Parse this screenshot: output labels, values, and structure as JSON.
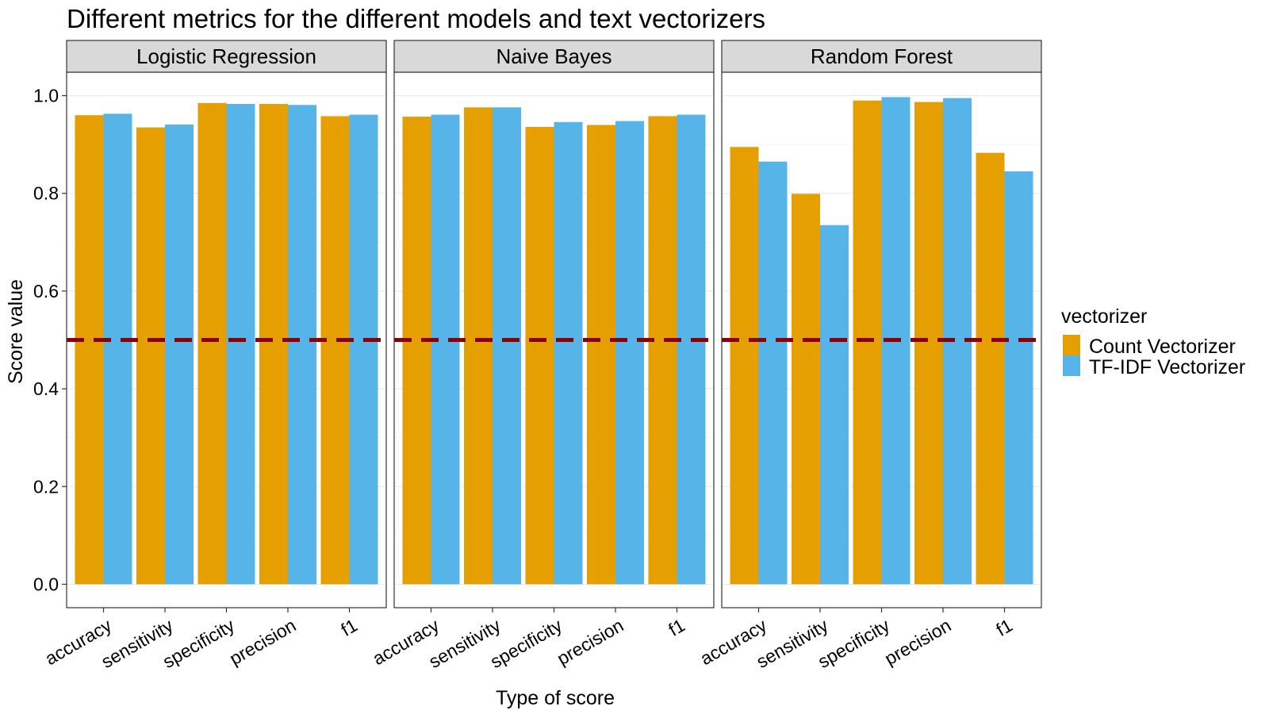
{
  "chart_data": {
    "type": "bar",
    "title": "Different metrics for the different models and text vectorizers",
    "xlabel": "Type of score",
    "ylabel": "Score value",
    "ylim": [
      -0.048,
      1.048
    ],
    "yticks": [
      "0.0",
      "0.2",
      "0.4",
      "0.6",
      "0.8",
      "1.0"
    ],
    "reference_line": {
      "y": 0.5,
      "style": "dashed",
      "color": "#8B0000"
    },
    "categories": [
      "accuracy",
      "sensitivity",
      "specificity",
      "precision",
      "f1"
    ],
    "legend": {
      "title": "vectorizer",
      "placement": "right"
    },
    "series_meta": [
      {
        "name": "Count Vectorizer",
        "color": "#E69F00"
      },
      {
        "name": "TF-IDF Vectorizer",
        "color": "#56B4E9"
      }
    ],
    "facets": [
      {
        "title": "Logistic Regression",
        "series": [
          {
            "name": "Count Vectorizer",
            "values": [
              0.96,
              0.935,
              0.985,
              0.983,
              0.958
            ]
          },
          {
            "name": "TF-IDF Vectorizer",
            "values": [
              0.963,
              0.941,
              0.983,
              0.981,
              0.961
            ]
          }
        ]
      },
      {
        "title": "Naive Bayes",
        "series": [
          {
            "name": "Count Vectorizer",
            "values": [
              0.957,
              0.976,
              0.936,
              0.94,
              0.958
            ]
          },
          {
            "name": "TF-IDF Vectorizer",
            "values": [
              0.961,
              0.976,
              0.946,
              0.948,
              0.961
            ]
          }
        ]
      },
      {
        "title": "Random Forest",
        "series": [
          {
            "name": "Count Vectorizer",
            "values": [
              0.895,
              0.799,
              0.99,
              0.987,
              0.883
            ]
          },
          {
            "name": "TF-IDF Vectorizer",
            "values": [
              0.865,
              0.735,
              0.997,
              0.995,
              0.845
            ]
          }
        ]
      }
    ]
  }
}
